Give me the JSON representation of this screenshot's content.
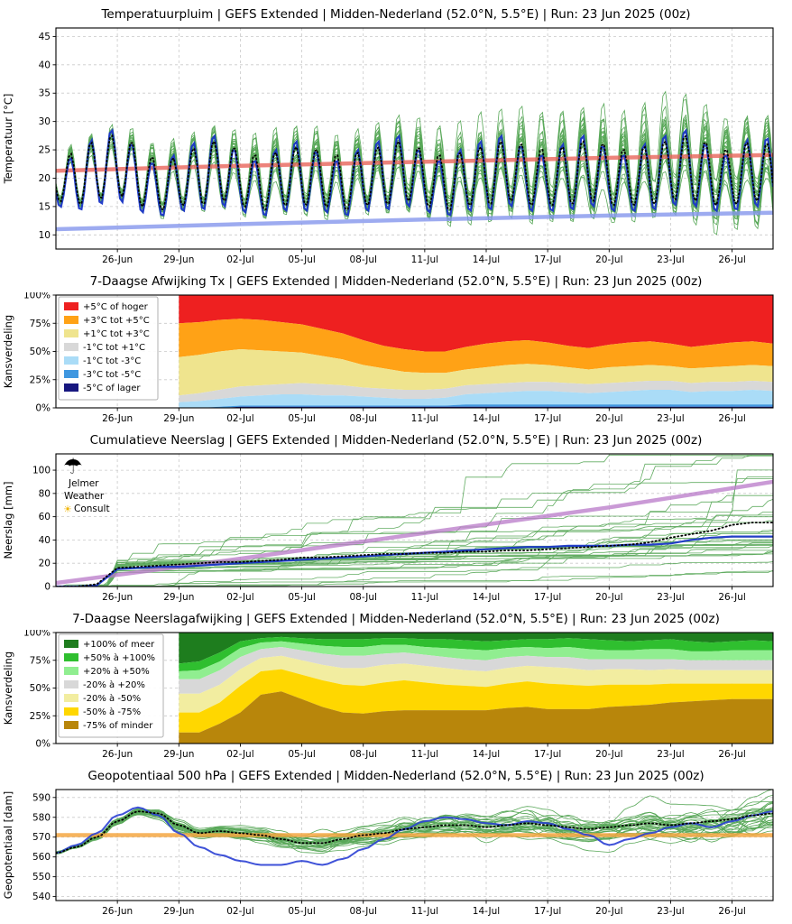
{
  "x_axis": {
    "tick_labels": [
      "26-Jun",
      "29-Jun",
      "02-Jul",
      "05-Jul",
      "08-Jul",
      "11-Jul",
      "14-Jul",
      "17-Jul",
      "20-Jul",
      "23-Jul",
      "26-Jul"
    ],
    "tick_days": [
      3,
      6,
      9,
      12,
      15,
      18,
      21,
      24,
      27,
      30,
      33
    ],
    "day_range": [
      0,
      35
    ]
  },
  "logo": {
    "umbrella": "☂",
    "sun": "☀",
    "sun_color": "#f0b400",
    "text_lines": [
      "Jelmer",
      "Weather",
      "Consult"
    ]
  },
  "chart_data": [
    {
      "type": "line",
      "subtype": "temperature-ensemble-plume",
      "title": "Temperatuurpluim | GEFS Extended | Midden-Nederland (52.0°N, 5.5°E) | Run: 23 Jun 2025 (00z)",
      "ylabel": "Temperatuur [°C]",
      "ylim": [
        7.5,
        46.5
      ],
      "yticks": [
        10,
        15,
        20,
        25,
        30,
        35,
        40,
        45
      ],
      "grid": true,
      "ensemble": {
        "name": "GEFS ensemble members",
        "count": 31,
        "color": "#228b22"
      },
      "mean": {
        "name": "ensemble mean",
        "style": "dotted",
        "color": "#000000",
        "daily_max": [
          23,
          25,
          27,
          28,
          26,
          23,
          24,
          26,
          27,
          25,
          24,
          25,
          26,
          25,
          24,
          25,
          26,
          27,
          25,
          24,
          25,
          26,
          27,
          26,
          25,
          26,
          27,
          26,
          25,
          26,
          27,
          28,
          26,
          25,
          27,
          26
        ],
        "daily_min": [
          16,
          15,
          16,
          17,
          15,
          14,
          15,
          15,
          16,
          15,
          14,
          15,
          15,
          15,
          14,
          15,
          15,
          16,
          15,
          14,
          15,
          15,
          16,
          15,
          15,
          15,
          16,
          15,
          15,
          15,
          16,
          16,
          15,
          15,
          16,
          15
        ]
      },
      "control": {
        "name": "control run",
        "color": "#1a35c8",
        "daily_max": [
          23,
          24,
          28,
          29,
          25,
          22,
          25,
          27,
          28,
          24,
          23,
          26,
          27,
          24,
          23,
          26,
          27,
          28,
          24,
          23,
          26,
          27,
          28,
          25,
          24,
          27,
          28,
          25,
          24,
          27,
          28,
          29,
          25,
          24,
          28,
          27
        ],
        "daily_min": [
          15,
          14,
          15,
          16,
          14,
          13,
          14,
          14,
          15,
          14,
          13,
          14,
          14,
          14,
          13,
          14,
          14,
          15,
          14,
          13,
          14,
          14,
          15,
          14,
          14,
          14,
          15,
          14,
          14,
          14,
          15,
          15,
          14,
          14,
          15,
          14
        ]
      },
      "climatology_max": {
        "name": "climatological maximum",
        "color": "#e8645a",
        "points": [
          [
            0,
            21.3
          ],
          [
            9,
            22.2
          ],
          [
            18,
            22.9
          ],
          [
            27,
            23.6
          ],
          [
            35,
            24.1
          ]
        ]
      },
      "climatology_min": {
        "name": "climatological minimum",
        "color": "#8496ec",
        "points": [
          [
            0,
            11.0
          ],
          [
            9,
            11.9
          ],
          [
            18,
            12.7
          ],
          [
            27,
            13.4
          ],
          [
            35,
            13.9
          ]
        ]
      },
      "spread_start": 1.1,
      "spread_end": 6.0
    },
    {
      "type": "area",
      "subtype": "stacked-100pct",
      "title": "7-Daagse Afwijking Tx | GEFS Extended | Midden-Nederland (52.0°N, 5.5°E) | Run: 23 Jun 2025 (00z)",
      "ylabel": "Kansverdeling",
      "ylim": [
        0,
        100
      ],
      "yticks": [
        0,
        25,
        50,
        75,
        100
      ],
      "ytick_labels": [
        "0%",
        "25%",
        "50%",
        "75%",
        "100%"
      ],
      "start_day": 6,
      "step_days": 1,
      "legend_position": "upper left",
      "categories": [
        {
          "label": "+5°C of hoger",
          "color": "#ee2020",
          "values": [
            25,
            24,
            22,
            21,
            22,
            24,
            26,
            30,
            34,
            40,
            45,
            48,
            50,
            50,
            46,
            43,
            41,
            40,
            42,
            45,
            47,
            44,
            42,
            41,
            43,
            46,
            44,
            42,
            41,
            43
          ]
        },
        {
          "label": "+3°C tot +5°C",
          "color": "#ffa216",
          "values": [
            30,
            29,
            28,
            27,
            27,
            26,
            25,
            24,
            23,
            22,
            20,
            20,
            19,
            19,
            20,
            21,
            21,
            21,
            20,
            19,
            19,
            20,
            21,
            21,
            20,
            19,
            20,
            21,
            21,
            20
          ]
        },
        {
          "label": "+1°C tot +3°C",
          "color": "#efe48e",
          "values": [
            34,
            34,
            34,
            33,
            31,
            29,
            27,
            25,
            23,
            20,
            18,
            16,
            15,
            14,
            14,
            15,
            16,
            16,
            15,
            14,
            13,
            14,
            14,
            14,
            13,
            13,
            13,
            14,
            14,
            14
          ]
        },
        {
          "label": "-1°C tot +1°C",
          "color": "#d8d8d8",
          "values": [
            6,
            7,
            8,
            9,
            9,
            9,
            10,
            10,
            9,
            8,
            8,
            8,
            8,
            8,
            8,
            8,
            8,
            8,
            8,
            8,
            8,
            8,
            8,
            8,
            8,
            8,
            8,
            8,
            8,
            8
          ]
        },
        {
          "label": "-1°C tot -3°C",
          "color": "#aadcf7",
          "values": [
            5,
            6,
            7,
            8,
            9,
            10,
            10,
            9,
            9,
            8,
            7,
            6,
            6,
            7,
            9,
            10,
            11,
            12,
            12,
            11,
            10,
            11,
            12,
            13,
            13,
            11,
            12,
            12,
            13,
            12
          ]
        },
        {
          "label": "-3°C tot -5°C",
          "color": "#3f97e0",
          "values": [
            0,
            0,
            1,
            1,
            1,
            1,
            1,
            1,
            1,
            1,
            1,
            1,
            1,
            1,
            2,
            2,
            2,
            2,
            2,
            2,
            2,
            2,
            2,
            2,
            2,
            2,
            2,
            2,
            2,
            2
          ]
        },
        {
          "label": "-5°C of lager",
          "color": "#17177f",
          "values": [
            0,
            0,
            0,
            1,
            1,
            1,
            1,
            1,
            1,
            1,
            1,
            1,
            1,
            1,
            1,
            1,
            1,
            1,
            1,
            1,
            1,
            1,
            1,
            1,
            1,
            1,
            1,
            1,
            1,
            1
          ]
        }
      ]
    },
    {
      "type": "line",
      "subtype": "cumulative-precipitation-plume",
      "title": "Cumulatieve Neerslag | GEFS Extended | Midden-Nederland (52.0°N, 5.5°E) | Run: 23 Jun 2025 (00z)",
      "ylabel": "Neerslag [mm]",
      "ylim": [
        0,
        114
      ],
      "yticks": [
        0,
        20,
        40,
        60,
        80,
        100
      ],
      "ensemble": {
        "name": "GEFS ensemble members",
        "count": 31,
        "color": "#228b22"
      },
      "median": {
        "name": "ensemble median",
        "style": "dotted",
        "color": "#000000",
        "daily": [
          0,
          0,
          2,
          16,
          17,
          18,
          19,
          20,
          21,
          21,
          22,
          23,
          25,
          25,
          26,
          27,
          28,
          28,
          29,
          29,
          30,
          30,
          31,
          31,
          32,
          33,
          34,
          35,
          36,
          38,
          42,
          45,
          48,
          53,
          55,
          55
        ]
      },
      "control": {
        "name": "control run",
        "color": "#1a35c8",
        "daily": [
          0,
          0,
          1,
          15,
          16,
          17,
          17,
          18,
          19,
          20,
          21,
          22,
          23,
          24,
          25,
          26,
          27,
          28,
          29,
          30,
          31,
          32,
          33,
          34,
          34,
          35,
          35,
          35,
          36,
          36,
          37,
          40,
          42,
          43,
          43,
          43
        ]
      },
      "climatology": {
        "name": "climatological cumulative precipitation",
        "color": "#b878c8",
        "points": [
          [
            0,
            3
          ],
          [
            9,
            24
          ],
          [
            18,
            46
          ],
          [
            27,
            68
          ],
          [
            35,
            90
          ]
        ]
      }
    },
    {
      "type": "area",
      "subtype": "stacked-100pct",
      "title": "7-Daagse Neerslagafwijking | GEFS Extended | Midden-Nederland (52.0°N, 5.5°E) | Run: 23 Jun 2025 (00z)",
      "ylabel": "Kansverdeling",
      "ylim": [
        0,
        100
      ],
      "yticks": [
        0,
        25,
        50,
        75,
        100
      ],
      "ytick_labels": [
        "0%",
        "25%",
        "50%",
        "75%",
        "100%"
      ],
      "start_day": 6,
      "step_days": 1,
      "legend_position": "upper left",
      "categories": [
        {
          "label": "+100% of meer",
          "color": "#1e7d1e",
          "values": [
            28,
            26,
            18,
            8,
            5,
            4,
            5,
            6,
            6,
            6,
            5,
            5,
            6,
            6,
            7,
            8,
            7,
            6,
            6,
            5,
            6,
            7,
            8,
            7,
            6,
            8,
            9,
            8,
            7,
            8
          ]
        },
        {
          "label": "+50% à +100%",
          "color": "#2fbf2f",
          "values": [
            7,
            8,
            8,
            6,
            4,
            4,
            5,
            6,
            7,
            7,
            6,
            6,
            7,
            8,
            8,
            8,
            7,
            7,
            8,
            8,
            9,
            9,
            8,
            8,
            9,
            9,
            8,
            8,
            9,
            8
          ]
        },
        {
          "label": "+20% à +50%",
          "color": "#90ee90",
          "values": [
            7,
            8,
            8,
            8,
            6,
            5,
            6,
            7,
            8,
            8,
            8,
            7,
            7,
            8,
            9,
            9,
            8,
            8,
            8,
            9,
            9,
            8,
            8,
            9,
            9,
            8,
            8,
            9,
            9,
            9
          ]
        },
        {
          "label": "-20% à +20%",
          "color": "#d8d8d8",
          "values": [
            13,
            13,
            13,
            11,
            8,
            8,
            9,
            10,
            11,
            11,
            10,
            10,
            10,
            10,
            10,
            10,
            10,
            9,
            9,
            10,
            10,
            9,
            9,
            10,
            9,
            9,
            9,
            9,
            9,
            9
          ]
        },
        {
          "label": "-20% à -50%",
          "color": "#f2eda0",
          "values": [
            17,
            17,
            16,
            15,
            12,
            12,
            13,
            14,
            15,
            16,
            16,
            15,
            15,
            15,
            14,
            14,
            14,
            14,
            15,
            15,
            14,
            14,
            14,
            13,
            13,
            12,
            12,
            12,
            12,
            12
          ]
        },
        {
          "label": "-50% à -75%",
          "color": "#ffd700",
          "values": [
            18,
            18,
            19,
            24,
            21,
            20,
            22,
            24,
            25,
            25,
            26,
            27,
            25,
            23,
            22,
            21,
            22,
            23,
            23,
            22,
            21,
            20,
            19,
            18,
            17,
            16,
            15,
            14,
            14,
            14
          ]
        },
        {
          "label": "-75% of minder",
          "color": "#b8860b",
          "values": [
            10,
            10,
            18,
            28,
            44,
            47,
            40,
            33,
            28,
            27,
            29,
            30,
            30,
            30,
            30,
            30,
            32,
            33,
            31,
            31,
            31,
            33,
            34,
            35,
            37,
            38,
            39,
            40,
            40,
            40
          ]
        }
      ]
    },
    {
      "type": "line",
      "subtype": "geopotential-ensemble-plume",
      "title": "Geopotentiaal 500 hPa | GEFS Extended | Midden-Nederland (52.0°N, 5.5°E) | Run: 23 Jun 2025 (00z)",
      "ylabel": "Geopotentiaal [dam]",
      "ylim": [
        538,
        594
      ],
      "yticks": [
        540,
        550,
        560,
        570,
        580,
        590
      ],
      "ensemble": {
        "name": "GEFS ensemble members",
        "count": 31,
        "color": "#228b22"
      },
      "mean": {
        "name": "ensemble mean",
        "style": "dotted",
        "color": "#000000",
        "daily": [
          562,
          565,
          570,
          578,
          583,
          582,
          576,
          572,
          573,
          572,
          571,
          569,
          567,
          567,
          569,
          571,
          572,
          574,
          575,
          576,
          576,
          575,
          576,
          577,
          576,
          575,
          574,
          575,
          576,
          577,
          576,
          577,
          578,
          579,
          581,
          582
        ]
      },
      "control": {
        "name": "control run",
        "color": "#2a3fd4",
        "daily": [
          562,
          566,
          572,
          581,
          585,
          581,
          572,
          565,
          561,
          558,
          556,
          556,
          558,
          556,
          559,
          564,
          569,
          574,
          578,
          580,
          579,
          577,
          576,
          578,
          577,
          574,
          571,
          566,
          569,
          572,
          575,
          577,
          575,
          578,
          581,
          583
        ]
      },
      "climatology": {
        "name": "climatological mean geopotential",
        "color": "#f5a742",
        "value": 571
      },
      "spread_start": 0.8,
      "spread_end": 11.0
    }
  ]
}
